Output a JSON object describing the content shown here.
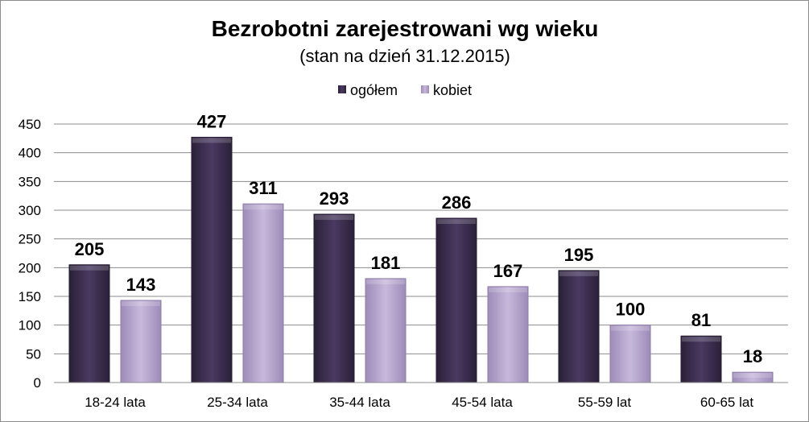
{
  "chart_data": {
    "type": "bar",
    "title": "Bezrobotni zarejestrowani wg wieku",
    "subtitle": "(stan na dzień 31.12.2015)",
    "categories": [
      "18-24 lata",
      "25-34 lata",
      "35-44 lata",
      "45-54 lata",
      "55-59 lat",
      "60-65 lat"
    ],
    "series": [
      {
        "name": "ogółem",
        "values": [
          205,
          427,
          293,
          286,
          195,
          81
        ],
        "color": "#3d2f52"
      },
      {
        "name": "kobiet",
        "values": [
          143,
          311,
          181,
          167,
          100,
          18
        ],
        "color": "#b3a2cc"
      }
    ],
    "ylim": [
      0,
      450
    ],
    "yticks": [
      0,
      50,
      100,
      150,
      200,
      250,
      300,
      350,
      400,
      450
    ],
    "grid": true,
    "legend_position": "top-center",
    "data_labels": true
  }
}
